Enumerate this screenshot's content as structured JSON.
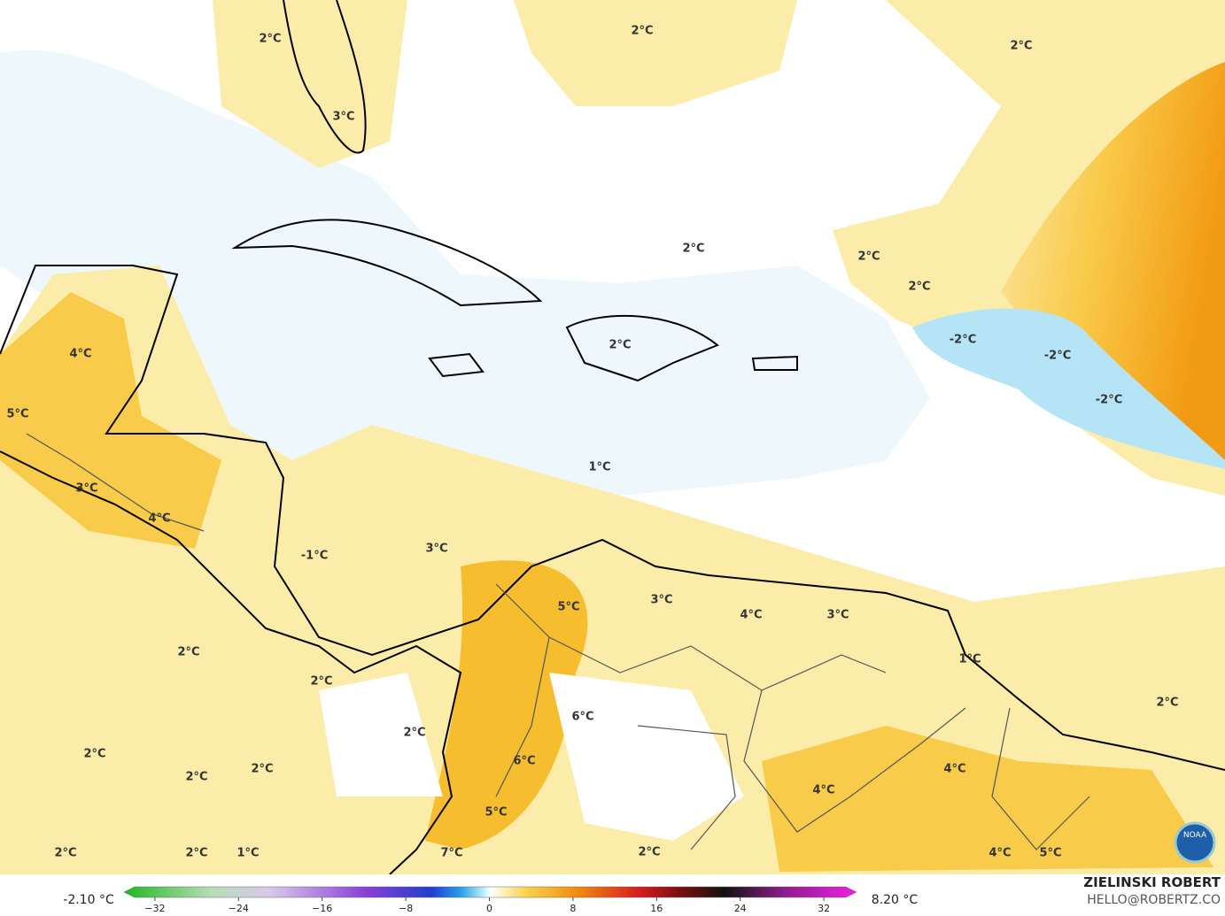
{
  "map": {
    "labels": [
      "2°C",
      "3°C",
      "2°C",
      "2°C",
      "2°C",
      "2°C",
      "2°C",
      "-2°C",
      "-2°C",
      "-2°C",
      "4°C",
      "5°C",
      "2°C",
      "3°C",
      "4°C",
      "1°C",
      "-1°C",
      "3°C",
      "5°C",
      "3°C",
      "4°C",
      "3°C",
      "1°C",
      "2°C",
      "2°C",
      "6°C",
      "2°C",
      "2°C",
      "2°C",
      "2°C",
      "2°C",
      "6°C",
      "4°C",
      "4°C",
      "5°C",
      "7°C",
      "2°C",
      "2°C",
      "1°C",
      "2°C",
      "4°C",
      "5°C"
    ]
  },
  "colorbar": {
    "min_label": "-2.10 °C",
    "max_label": "8.20 °C",
    "ticks": [
      {
        "value": -32,
        "label": "−32"
      },
      {
        "value": -24,
        "label": "−24"
      },
      {
        "value": -16,
        "label": "−16"
      },
      {
        "value": -8,
        "label": "−8"
      },
      0,
      8,
      16,
      24,
      32
    ]
  },
  "credit": {
    "name": "ZIELINSKI ROBERT",
    "email": "HELLO@ROBERTZ.CO"
  },
  "logo": "NOAA"
}
